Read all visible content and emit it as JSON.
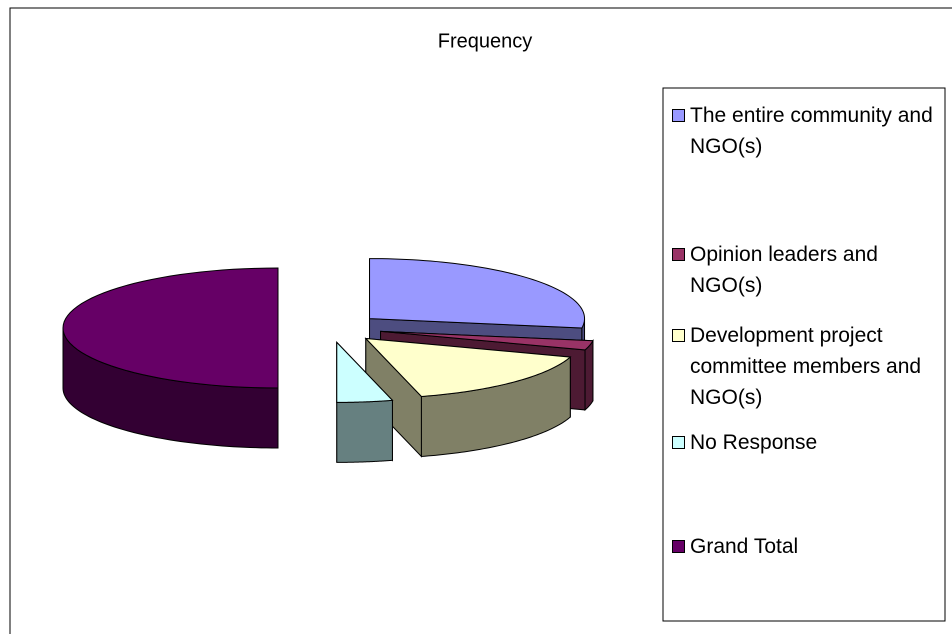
{
  "chart_data": {
    "type": "pie3d",
    "title": "Frequency",
    "categories": [
      "The entire community and NGO(s)",
      "Opinion leaders and NGO(s)",
      "Development project committee members and NGO(s)",
      "No Response",
      "Grand Total"
    ],
    "values": [
      66,
      6,
      38,
      10,
      120
    ],
    "colors": [
      "#9999ff",
      "#993366",
      "#ffffcc",
      "#ccffff",
      "#660066"
    ],
    "legend": "right"
  }
}
